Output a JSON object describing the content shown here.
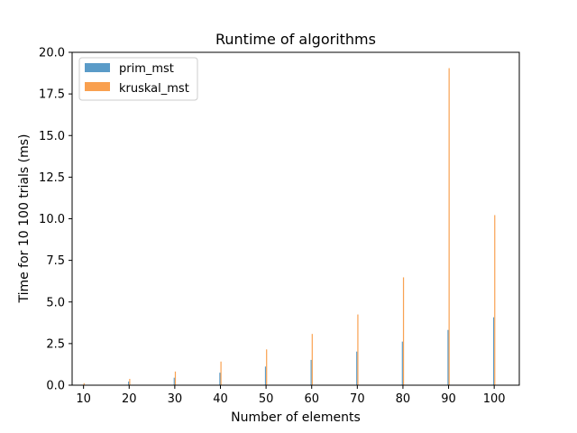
{
  "chart_data": {
    "type": "bar",
    "title": "Runtime of algorithms",
    "xlabel": "Number of elements",
    "ylabel": "Time for 10 100 trials (ms)",
    "x": [
      10,
      20,
      30,
      40,
      50,
      60,
      70,
      80,
      90,
      100
    ],
    "x_ticks": [
      "10",
      "20",
      "30",
      "40",
      "50",
      "60",
      "70",
      "80",
      "90",
      "100"
    ],
    "xlim": [
      7.5,
      105.5
    ],
    "ylim": [
      0,
      20
    ],
    "y_ticks": [
      "0.0",
      "2.5",
      "5.0",
      "7.5",
      "10.0",
      "12.5",
      "15.0",
      "17.5",
      "20.0"
    ],
    "legend_position": "top-left",
    "grid": false,
    "series": [
      {
        "name": "prim_mst",
        "color": "#5a9bc8",
        "values": [
          0.02,
          0.22,
          0.45,
          0.75,
          1.12,
          1.52,
          2.02,
          2.62,
          3.32,
          4.08
        ]
      },
      {
        "name": "kruskal_mst",
        "color": "#f9a04f",
        "values": [
          0.12,
          0.38,
          0.82,
          1.42,
          2.15,
          3.08,
          4.25,
          6.48,
          19.05,
          10.22
        ]
      }
    ]
  }
}
